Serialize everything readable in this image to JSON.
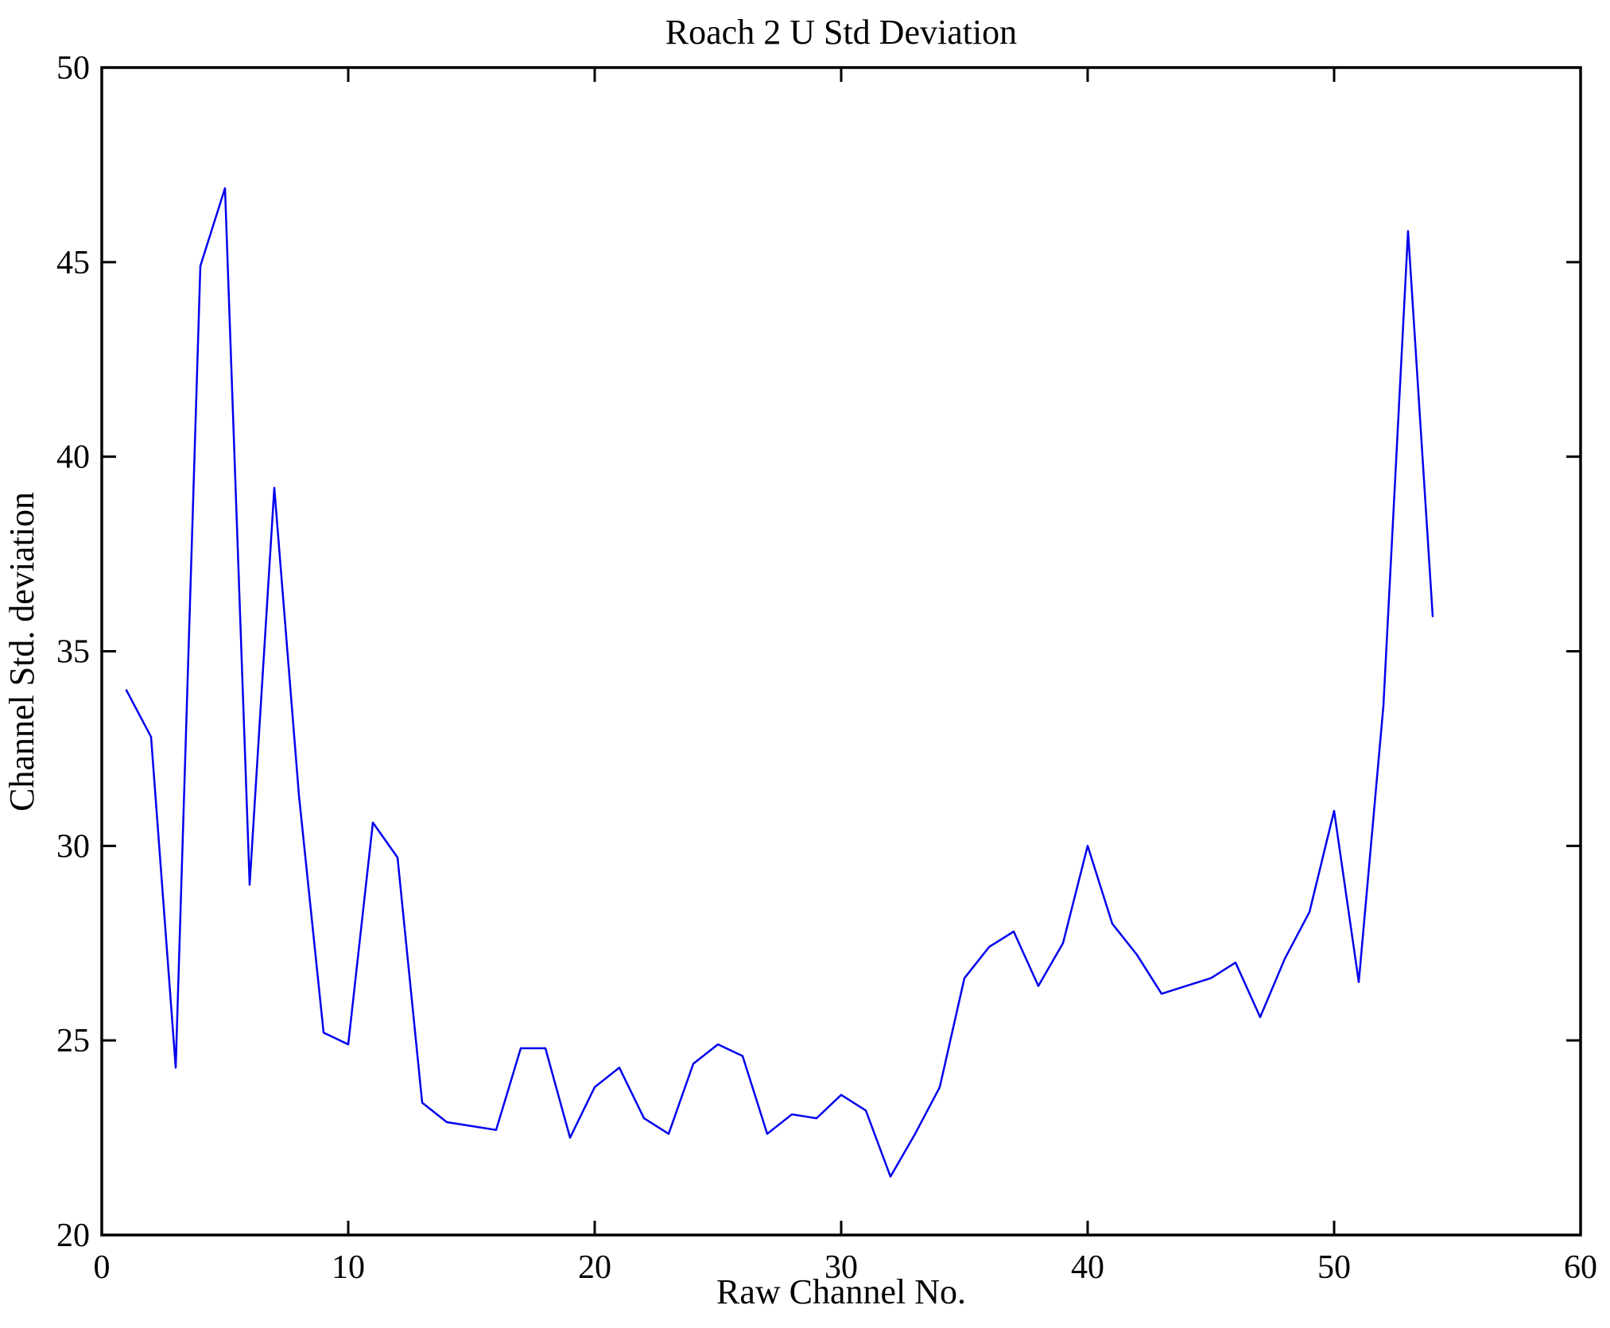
{
  "chart_data": {
    "type": "line",
    "title": "Roach 2 U Std Deviation",
    "xlabel": "Raw Channel No.",
    "ylabel": "Channel Std. deviation",
    "xlim": [
      0,
      60
    ],
    "ylim": [
      20,
      50
    ],
    "x_ticks": [
      0,
      10,
      20,
      30,
      40,
      50,
      60
    ],
    "y_ticks": [
      20,
      25,
      30,
      35,
      40,
      45,
      50
    ],
    "grid": false,
    "legend": "none",
    "line_color": "#0000EE",
    "axis_color": "#000000",
    "background_color": "#ffffff",
    "series": [
      {
        "name": "channel-std-deviation",
        "x": [
          1,
          2,
          3,
          4,
          5,
          6,
          7,
          8,
          9,
          10,
          11,
          12,
          13,
          14,
          15,
          16,
          17,
          18,
          19,
          20,
          21,
          22,
          23,
          24,
          25,
          26,
          27,
          28,
          29,
          30,
          31,
          32,
          33,
          34,
          35,
          36,
          37,
          38,
          39,
          40,
          41,
          42,
          43,
          44,
          45,
          46,
          47,
          48,
          49,
          50,
          51,
          52,
          53,
          54
        ],
        "y": [
          34.0,
          32.8,
          24.3,
          44.9,
          46.9,
          29.0,
          39.2,
          31.3,
          25.2,
          24.9,
          30.6,
          29.7,
          23.4,
          22.9,
          22.8,
          22.7,
          24.8,
          24.8,
          22.5,
          23.8,
          24.3,
          23.0,
          22.6,
          24.4,
          24.9,
          24.6,
          22.6,
          23.1,
          23.0,
          23.6,
          23.2,
          21.5,
          22.6,
          23.8,
          26.6,
          27.4,
          27.8,
          26.4,
          27.5,
          30.0,
          28.0,
          27.2,
          26.2,
          26.4,
          26.6,
          27.0,
          25.6,
          27.1,
          28.3,
          30.9,
          26.5,
          33.6,
          45.8,
          35.9
        ]
      }
    ]
  }
}
